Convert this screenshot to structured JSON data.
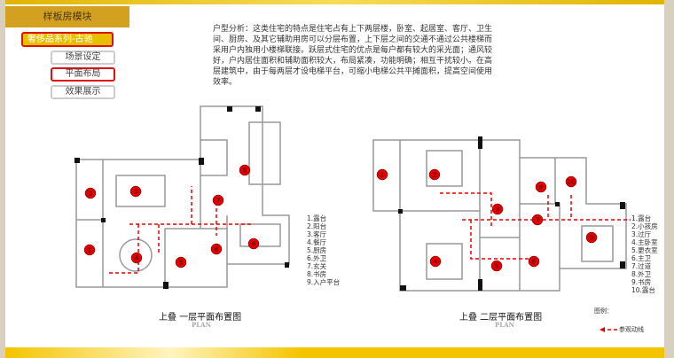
{
  "sidebar": {
    "module_title": "样板房模块",
    "series": "奢侈品系列-古驰",
    "items": [
      {
        "label": "场景设定",
        "active": false
      },
      {
        "label": "平面布局",
        "active": true
      },
      {
        "label": "效果展示",
        "active": false
      }
    ]
  },
  "analysis": "户型分析：这类住宅的特点是住宅占有上下两层楼，卧室、起居室、客厅、卫生间、厨房、及其它辅助用房可以分层布置，上下层之间的交通不通过公共楼梯而采用户内独用小楼梯联接。跃层式住宅的优点是每户都有较大的采光面；通风较好，户内居住面积和辅助面积较大，布局紧凑，功能明确；相互干扰较小。在高层建筑中，由于每两层才设电梯平台，可缩小电梯公共平摊面积，提高空间使用效率。",
  "plan1": {
    "title": "上叠 一层平面布置图",
    "subtitle": "PLAN",
    "legend": [
      "1.露台",
      "2.阳台",
      "3.客厅",
      "4.餐厅",
      "5.厨房",
      "6.外卫",
      "7.玄关",
      "8.书房",
      "9.入户平台"
    ],
    "markers": [
      "1",
      "2",
      "3",
      "4",
      "5",
      "6",
      "7",
      "8",
      "9"
    ]
  },
  "plan2": {
    "title": "上叠 二层平面布置图",
    "subtitle": "PLAN",
    "legend": [
      "1.露台",
      "2.小孩房",
      "3.过厅",
      "4.主卧室",
      "5.更衣室",
      "6.主卫",
      "7.过道",
      "8.外卫",
      "9.书房",
      "10.露台"
    ],
    "markers": [
      "1",
      "2",
      "3",
      "4",
      "5",
      "6",
      "7",
      "8",
      "9",
      "10"
    ]
  },
  "key": {
    "title": "图例：",
    "route_label": "参观动线"
  },
  "colors": {
    "accent": "#d4a020",
    "marker": "#e00000",
    "highlight": "#e01010"
  }
}
